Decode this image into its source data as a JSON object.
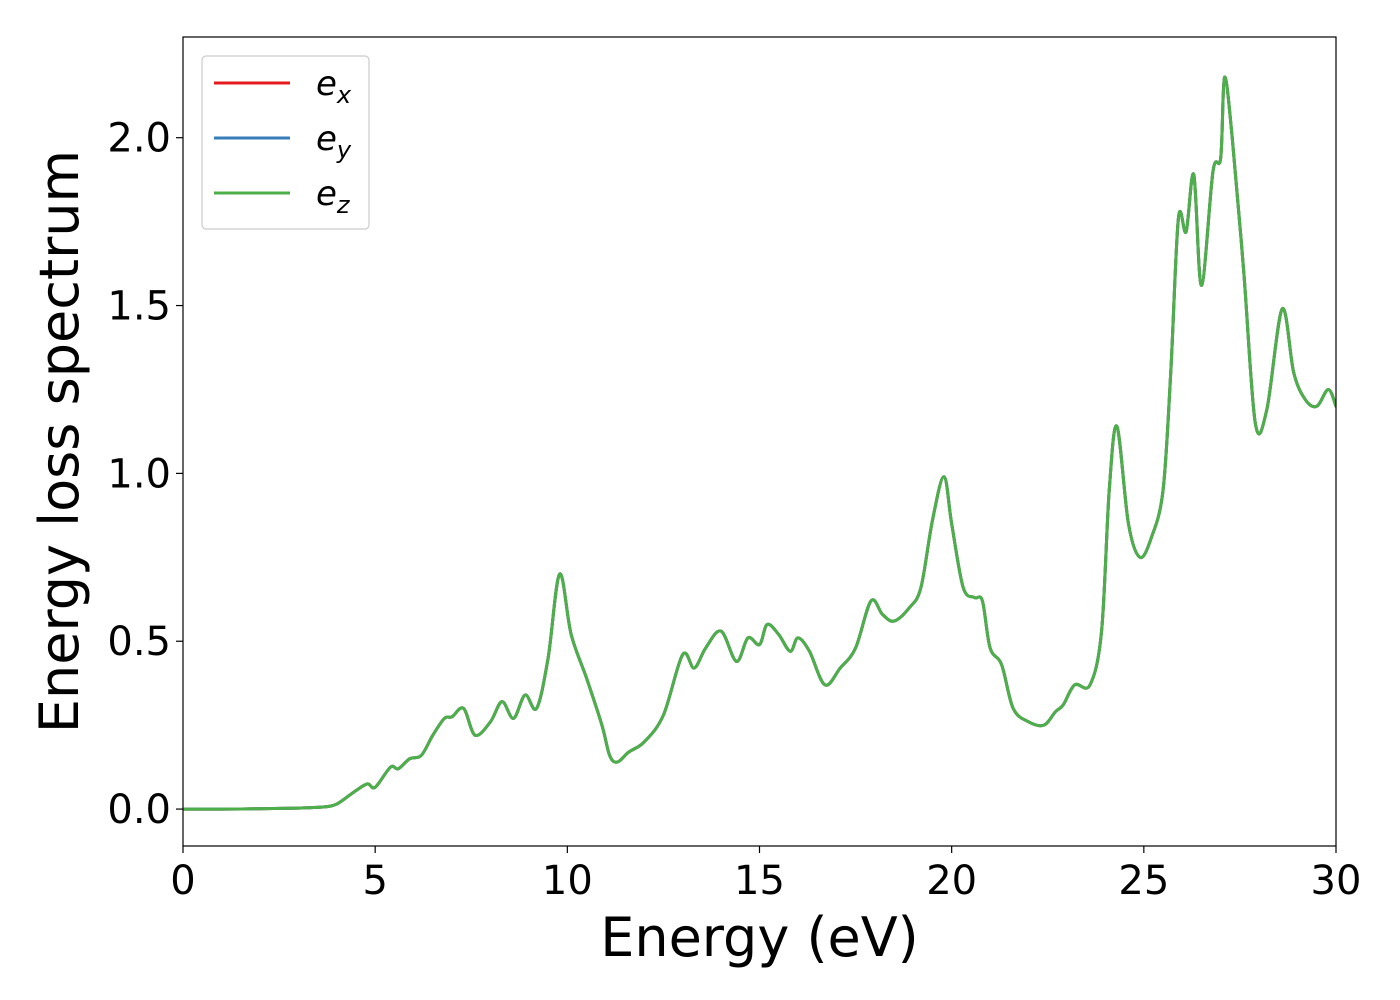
{
  "chart_data": {
    "type": "line",
    "title": "",
    "xlabel": "Energy (eV)",
    "ylabel": "Energy loss spectrum",
    "xlim": [
      0,
      30
    ],
    "ylim": [
      -0.11,
      2.3
    ],
    "xticks": [
      0,
      5,
      10,
      15,
      20,
      25,
      30
    ],
    "xtick_labels": [
      "0",
      "5",
      "10",
      "15",
      "20",
      "25",
      "30"
    ],
    "yticks": [
      0.0,
      0.5,
      1.0,
      1.5,
      2.0
    ],
    "ytick_labels": [
      "0.0",
      "0.5",
      "1.0",
      "1.5",
      "2.0"
    ],
    "grid": false,
    "legend_position": "top-left",
    "colors": {
      "ex": "#e41a1c",
      "ey": "#377eb8",
      "ez": "#4daf4a"
    },
    "x": [
      0,
      1,
      2,
      3,
      3.5,
      3.8,
      4.0,
      4.2,
      4.5,
      4.8,
      5.0,
      5.4,
      5.6,
      5.9,
      6.2,
      6.5,
      6.8,
      7.0,
      7.3,
      7.6,
      8.0,
      8.3,
      8.6,
      8.9,
      9.2,
      9.5,
      9.8,
      10.1,
      10.5,
      10.9,
      11.1,
      11.3,
      11.6,
      12.0,
      12.5,
      13.0,
      13.3,
      13.6,
      14.0,
      14.4,
      14.7,
      15.0,
      15.2,
      15.5,
      15.8,
      16.0,
      16.3,
      16.7,
      17.1,
      17.5,
      17.9,
      18.2,
      18.5,
      18.9,
      19.2,
      19.5,
      19.8,
      20.0,
      20.3,
      20.6,
      20.8,
      21.0,
      21.3,
      21.6,
      22.0,
      22.4,
      22.7,
      22.9,
      23.2,
      23.6,
      23.9,
      24.1,
      24.3,
      24.6,
      24.9,
      25.2,
      25.5,
      25.7,
      25.9,
      26.1,
      26.3,
      26.5,
      26.8,
      27.0,
      27.1,
      27.3,
      27.6,
      27.9,
      28.2,
      28.6,
      28.9,
      29.2,
      29.5,
      29.8,
      30.0
    ],
    "series": [
      {
        "name": "e_x",
        "color": "#e41a1c",
        "values": [
          0,
          0,
          0.001,
          0.003,
          0.005,
          0.008,
          0.015,
          0.03,
          0.055,
          0.075,
          0.065,
          0.125,
          0.12,
          0.15,
          0.16,
          0.22,
          0.27,
          0.275,
          0.3,
          0.22,
          0.26,
          0.32,
          0.27,
          0.34,
          0.3,
          0.45,
          0.7,
          0.52,
          0.39,
          0.25,
          0.16,
          0.14,
          0.17,
          0.2,
          0.28,
          0.46,
          0.42,
          0.48,
          0.53,
          0.44,
          0.51,
          0.49,
          0.55,
          0.52,
          0.47,
          0.51,
          0.47,
          0.37,
          0.42,
          0.48,
          0.62,
          0.58,
          0.56,
          0.6,
          0.66,
          0.86,
          0.99,
          0.85,
          0.66,
          0.63,
          0.62,
          0.48,
          0.43,
          0.3,
          0.26,
          0.25,
          0.29,
          0.31,
          0.37,
          0.37,
          0.53,
          0.95,
          1.14,
          0.85,
          0.75,
          0.81,
          0.95,
          1.3,
          1.76,
          1.72,
          1.89,
          1.56,
          1.9,
          1.94,
          2.18,
          2.0,
          1.6,
          1.15,
          1.19,
          1.49,
          1.3,
          1.22,
          1.2,
          1.25,
          1.2
        ]
      },
      {
        "name": "e_y",
        "color": "#377eb8",
        "values": [
          0,
          0,
          0.001,
          0.003,
          0.005,
          0.008,
          0.015,
          0.03,
          0.055,
          0.075,
          0.065,
          0.125,
          0.12,
          0.15,
          0.16,
          0.22,
          0.27,
          0.275,
          0.3,
          0.22,
          0.26,
          0.32,
          0.27,
          0.34,
          0.3,
          0.45,
          0.7,
          0.52,
          0.39,
          0.25,
          0.16,
          0.14,
          0.17,
          0.2,
          0.28,
          0.46,
          0.42,
          0.48,
          0.53,
          0.44,
          0.51,
          0.49,
          0.55,
          0.52,
          0.47,
          0.51,
          0.47,
          0.37,
          0.42,
          0.48,
          0.62,
          0.58,
          0.56,
          0.6,
          0.66,
          0.86,
          0.99,
          0.85,
          0.66,
          0.63,
          0.62,
          0.48,
          0.43,
          0.3,
          0.26,
          0.25,
          0.29,
          0.31,
          0.37,
          0.37,
          0.53,
          0.95,
          1.14,
          0.85,
          0.75,
          0.81,
          0.95,
          1.3,
          1.76,
          1.72,
          1.89,
          1.56,
          1.9,
          1.94,
          2.18,
          2.0,
          1.6,
          1.15,
          1.19,
          1.49,
          1.3,
          1.22,
          1.2,
          1.25,
          1.2
        ]
      },
      {
        "name": "e_z",
        "color": "#4daf4a",
        "values": [
          0,
          0,
          0.001,
          0.003,
          0.005,
          0.008,
          0.015,
          0.03,
          0.055,
          0.075,
          0.065,
          0.125,
          0.12,
          0.15,
          0.16,
          0.22,
          0.27,
          0.275,
          0.3,
          0.22,
          0.26,
          0.32,
          0.27,
          0.34,
          0.3,
          0.45,
          0.7,
          0.52,
          0.39,
          0.25,
          0.16,
          0.14,
          0.17,
          0.2,
          0.28,
          0.46,
          0.42,
          0.48,
          0.53,
          0.44,
          0.51,
          0.49,
          0.55,
          0.52,
          0.47,
          0.51,
          0.47,
          0.37,
          0.42,
          0.48,
          0.62,
          0.58,
          0.56,
          0.6,
          0.66,
          0.86,
          0.99,
          0.85,
          0.66,
          0.63,
          0.62,
          0.48,
          0.43,
          0.3,
          0.26,
          0.25,
          0.29,
          0.31,
          0.37,
          0.37,
          0.53,
          0.95,
          1.14,
          0.85,
          0.75,
          0.81,
          0.95,
          1.3,
          1.76,
          1.72,
          1.89,
          1.56,
          1.9,
          1.94,
          2.18,
          2.0,
          1.6,
          1.15,
          1.19,
          1.49,
          1.3,
          1.22,
          1.2,
          1.25,
          1.2
        ]
      }
    ],
    "legend": [
      {
        "base": "e",
        "sub": "x",
        "color": "#e41a1c"
      },
      {
        "base": "e",
        "sub": "y",
        "color": "#377eb8"
      },
      {
        "base": "e",
        "sub": "z",
        "color": "#4daf4a"
      }
    ]
  }
}
